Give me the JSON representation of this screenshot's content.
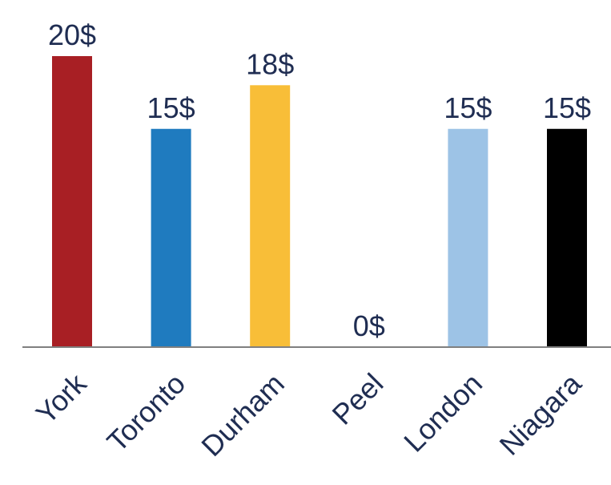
{
  "chart_data": {
    "type": "bar",
    "categories": [
      "York",
      "Toronto",
      "Durham",
      "Peel",
      "London",
      "Niagara"
    ],
    "values": [
      20,
      15,
      18,
      0,
      15,
      15
    ],
    "value_labels": [
      "20$",
      "15$",
      "18$",
      "0$",
      "15$",
      "15$"
    ],
    "colors": [
      "#a81f24",
      "#1f7bbf",
      "#f8be38",
      "#ffffff",
      "#9dc3e6",
      "#000000"
    ],
    "axis_color": "#808080",
    "label_color": "#1f2d52",
    "ylim": [
      0,
      20
    ],
    "grid": false,
    "legend": "none",
    "title": "",
    "xlabel": "",
    "ylabel": ""
  }
}
